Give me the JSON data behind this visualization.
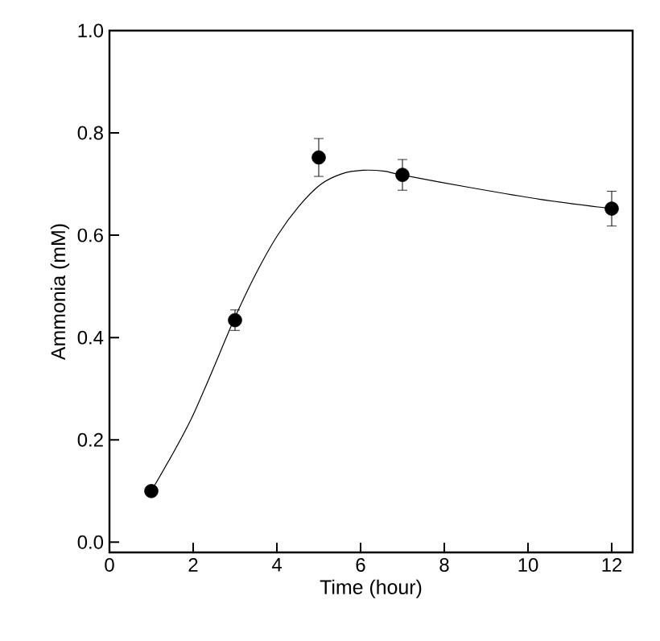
{
  "chart_data": {
    "type": "scatter",
    "xlabel": "Time (hour)",
    "ylabel": "Ammonia (mM)",
    "xlim": [
      0,
      12.5
    ],
    "ylim": [
      -0.02,
      1.0
    ],
    "xticks": [
      0,
      2,
      4,
      6,
      8,
      10,
      12
    ],
    "yticks": [
      {
        "value": 0,
        "label": "0.0"
      },
      0.2,
      0.4,
      0.6,
      0.8,
      {
        "value": 1,
        "label": "1.0"
      }
    ],
    "grid": false,
    "series": [
      {
        "color": "#000000",
        "marker": "circle",
        "x": [
          1,
          3,
          5,
          7,
          12
        ],
        "values": [
          0.1,
          0.434,
          0.752,
          0.718,
          0.652
        ],
        "errors": [
          null,
          0.02,
          0.037,
          0.03,
          0.034
        ]
      },
      {
        "type": "line",
        "color": "#000000",
        "marker": "none",
        "line_style": "solid",
        "x": [
          1,
          1.96,
          2.97,
          3.5,
          4.01,
          4.53,
          5.04,
          5.55,
          6.06,
          6.58,
          6.97,
          8.63,
          10.3,
          12
        ],
        "values": [
          0.1,
          0.242,
          0.434,
          0.525,
          0.599,
          0.657,
          0.699,
          0.72,
          0.727,
          0.725,
          0.718,
          0.693,
          0.67,
          0.652
        ]
      }
    ]
  }
}
